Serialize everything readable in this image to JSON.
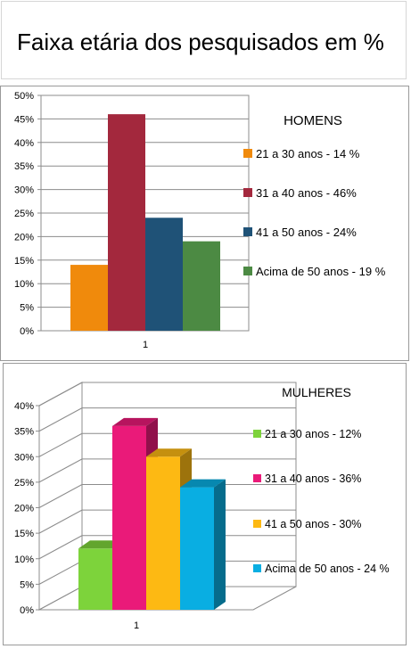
{
  "page": {
    "title": "Faixa etária dos pesquisados em %"
  },
  "chart_data": [
    {
      "type": "bar",
      "title": "HOMENS",
      "categories": [
        "1"
      ],
      "ylim": [
        0,
        50
      ],
      "yticks": [
        "0%",
        "5%",
        "10%",
        "15%",
        "20%",
        "25%",
        "30%",
        "35%",
        "40%",
        "45%",
        "50%"
      ],
      "grid": true,
      "legend_position": "right",
      "series": [
        {
          "name": "21 a 30 anos  - 14 %",
          "values": [
            14
          ],
          "color": "#f08a0c"
        },
        {
          "name": "31 a 40 anos - 46%",
          "values": [
            46
          ],
          "color": "#a3283d"
        },
        {
          "name": "41 a 50 anos - 24%",
          "values": [
            24
          ],
          "color": "#1f5277"
        },
        {
          "name": "Acima de 50 anos - 19 %",
          "values": [
            19
          ],
          "color": "#4c8a43"
        }
      ]
    },
    {
      "type": "bar",
      "style": "3d",
      "title": "MULHERES",
      "categories": [
        "1"
      ],
      "ylim": [
        0,
        40
      ],
      "yticks": [
        "0%",
        "5%",
        "10%",
        "15%",
        "20%",
        "25%",
        "30%",
        "35%",
        "40%"
      ],
      "grid": true,
      "legend_position": "right",
      "series": [
        {
          "name": "21 a 30 anos - 12%",
          "values": [
            12
          ],
          "color": "#7dd33b"
        },
        {
          "name": "31 a 40 anos - 36%",
          "values": [
            36
          ],
          "color": "#ea1a79"
        },
        {
          "name": "41 a 50 anos - 30%",
          "values": [
            30
          ],
          "color": "#fdb913"
        },
        {
          "name": "Acima de 50 anos - 24 %",
          "values": [
            24
          ],
          "color": "#09aee2"
        }
      ]
    }
  ]
}
